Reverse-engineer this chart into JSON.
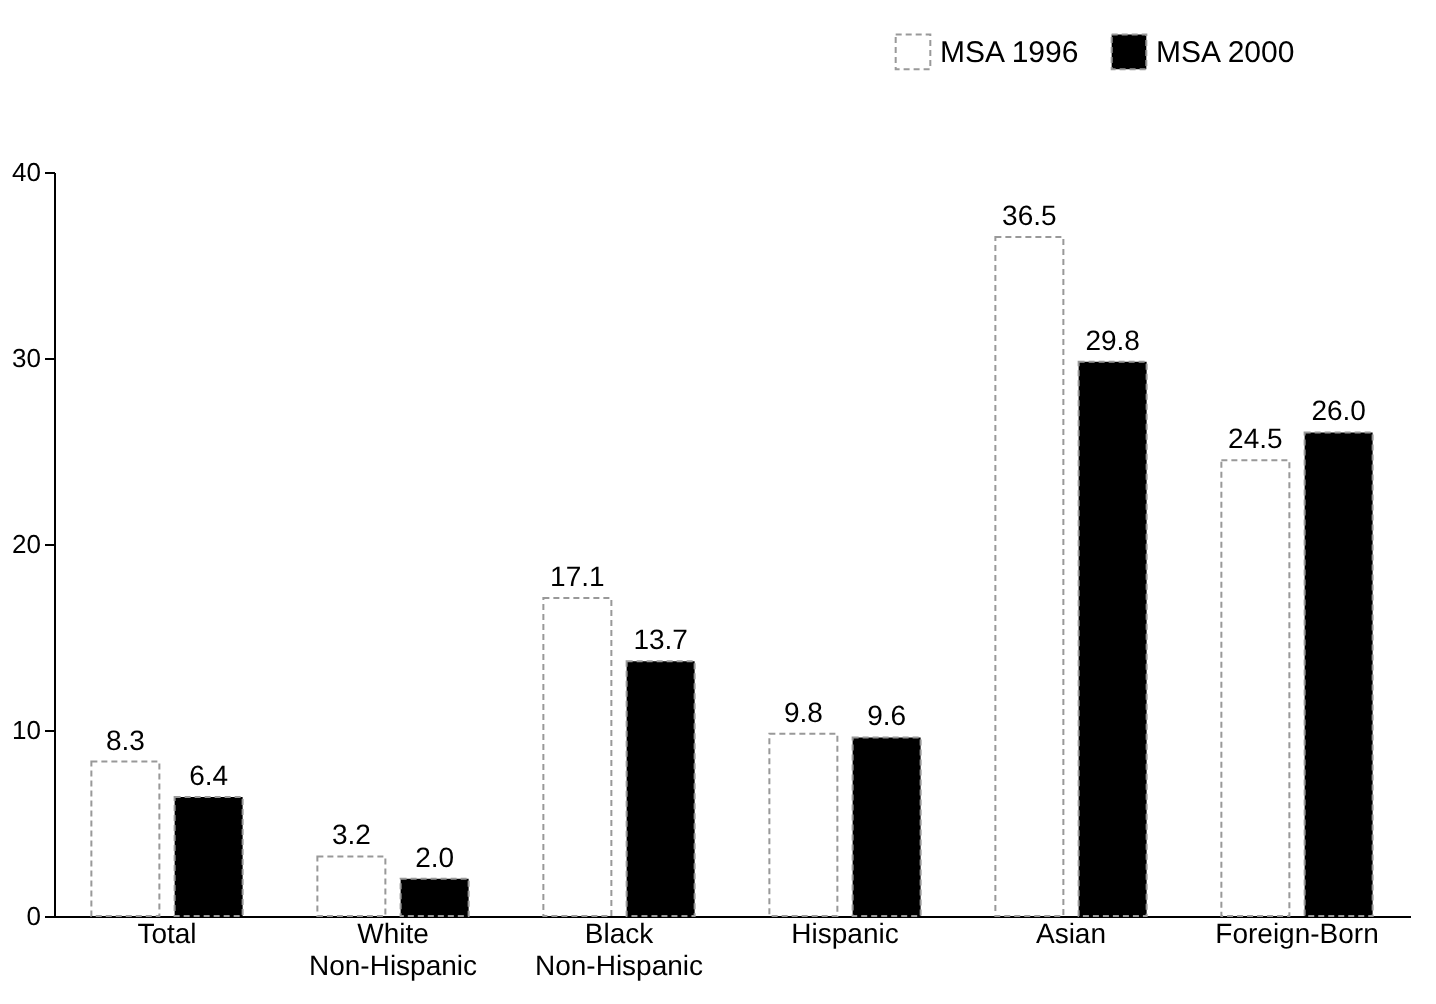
{
  "chart_data": {
    "type": "bar",
    "categories": [
      "Total",
      "White Non-Hispanic",
      "Black Non-Hispanic",
      "Hispanic",
      "Asian",
      "Foreign-Born"
    ],
    "series": [
      {
        "name": "MSA 1996",
        "color": "#ffffff",
        "values": [
          8.3,
          3.2,
          17.1,
          9.8,
          36.5,
          24.5
        ],
        "value_labels": [
          "8.3",
          "3.2",
          "17.1",
          "9.8",
          "36.5",
          "24.5"
        ]
      },
      {
        "name": "MSA 2000",
        "color": "#000000",
        "values": [
          6.4,
          2.0,
          13.7,
          9.6,
          29.8,
          26.0
        ],
        "value_labels": [
          "6.4",
          "2.0",
          "13.7",
          "9.6",
          "29.8",
          "26.0"
        ]
      }
    ],
    "ylim": [
      0,
      40
    ],
    "yticks": [
      0,
      10,
      20,
      30,
      40
    ],
    "grid": false,
    "legend": "top right"
  }
}
